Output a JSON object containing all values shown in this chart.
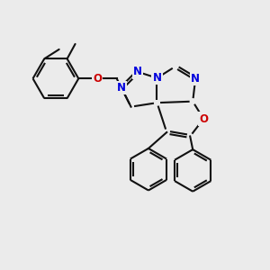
{
  "bg_color": "#ebebeb",
  "bond_color": "#111111",
  "n_color": "#0000dd",
  "o_color": "#cc0000",
  "lw": 1.5,
  "doff": 0.05,
  "fs": 8,
  "figsize": [
    3.0,
    3.0
  ],
  "dpi": 100,
  "xlim": [
    0,
    10
  ],
  "ylim": [
    0,
    10
  ]
}
